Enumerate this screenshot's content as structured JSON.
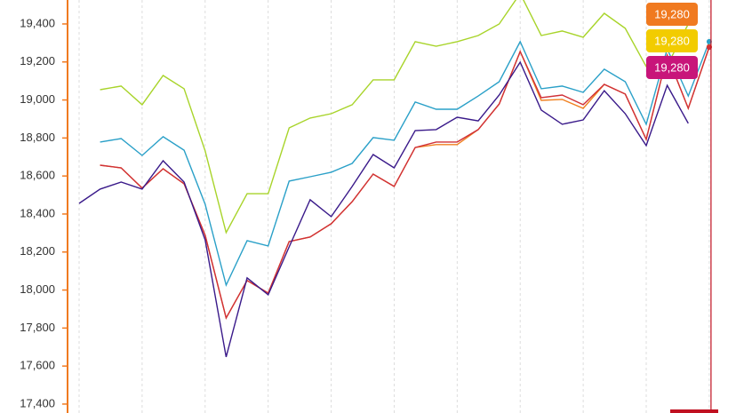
{
  "chart_data": {
    "type": "line",
    "categories": [
      null,
      null,
      null,
      null,
      null,
      null,
      null,
      null,
      null,
      null,
      null,
      null,
      null,
      null,
      null,
      null,
      null,
      null,
      null,
      null,
      null,
      null,
      null,
      null,
      null,
      null,
      null,
      null,
      null,
      null,
      null
    ],
    "ylim": [
      17353,
      19526
    ],
    "yticks": [
      {
        "value": 17400,
        "label": "17,400"
      },
      {
        "value": 17600,
        "label": "17,600"
      },
      {
        "value": 17800,
        "label": "17,800"
      },
      {
        "value": 18000,
        "label": "18,000"
      },
      {
        "value": 18200,
        "label": "18,200"
      },
      {
        "value": 18400,
        "label": "18,400"
      },
      {
        "value": 18600,
        "label": "18,600"
      },
      {
        "value": 18800,
        "label": "18,800"
      },
      {
        "value": 19000,
        "label": "19,000"
      },
      {
        "value": 19200,
        "label": "19,200"
      },
      {
        "value": 19400,
        "label": "19,400"
      }
    ],
    "axis_color": "#f07a20",
    "series": [
      {
        "color": "#a8d42a",
        "values": [
          null,
          19054,
          19073,
          18975,
          19129,
          19059,
          18732,
          18302,
          18507,
          18507,
          18853,
          18905,
          18928,
          18975,
          19106,
          19106,
          19307,
          19283,
          19307,
          19339,
          19400,
          19560,
          19339,
          19363,
          19330,
          19456,
          19377,
          19176,
          19180,
          19400,
          null
        ]
      },
      {
        "color": "#2aa0c8",
        "values": [
          null,
          18779,
          18797,
          18708,
          18807,
          18736,
          18451,
          18026,
          18260,
          18232,
          18573,
          18596,
          18620,
          18666,
          18802,
          18788,
          18989,
          18951,
          18951,
          19021,
          19096,
          19307,
          19059,
          19073,
          19040,
          19162,
          19096,
          18872,
          19269,
          19021,
          19307
        ]
      },
      {
        "color": "#f08020",
        "values": [
          null,
          18657,
          18643,
          18536,
          18638,
          18559,
          18288,
          17853,
          18050,
          17984,
          18255,
          18279,
          18349,
          18465,
          18610,
          18545,
          18750,
          18765,
          18765,
          18844,
          18979,
          19255,
          18998,
          19003,
          18956,
          19082,
          19031,
          18793,
          19236,
          18956,
          19280
        ]
      },
      {
        "color": "#d03038",
        "values": [
          null,
          18657,
          18643,
          18536,
          18638,
          18559,
          18288,
          17853,
          18050,
          17984,
          18255,
          18279,
          18349,
          18465,
          18610,
          18545,
          18750,
          18779,
          18779,
          18844,
          18979,
          19255,
          19012,
          19026,
          18975,
          19082,
          19031,
          18793,
          19236,
          18956,
          19278
        ]
      },
      {
        "color": "#3a1a8a",
        "values": [
          18456,
          18531,
          18568,
          18531,
          18680,
          18568,
          18264,
          17648,
          18064,
          17975,
          18227,
          18475,
          18386,
          18545,
          18713,
          18643,
          18839,
          18844,
          18909,
          18890,
          19026,
          19199,
          18947,
          18872,
          18895,
          19049,
          18928,
          18760,
          19077,
          18877,
          null
        ]
      }
    ],
    "crosshair_color": "#c01020",
    "crosshair_tags": [
      {
        "value": 19280,
        "label": "19,280",
        "color": "#f07a20"
      },
      {
        "value": 19280,
        "label": "19,280",
        "color": "#f2cc00"
      },
      {
        "value": 19280,
        "label": "19,280",
        "color": "#c8157a"
      }
    ]
  }
}
